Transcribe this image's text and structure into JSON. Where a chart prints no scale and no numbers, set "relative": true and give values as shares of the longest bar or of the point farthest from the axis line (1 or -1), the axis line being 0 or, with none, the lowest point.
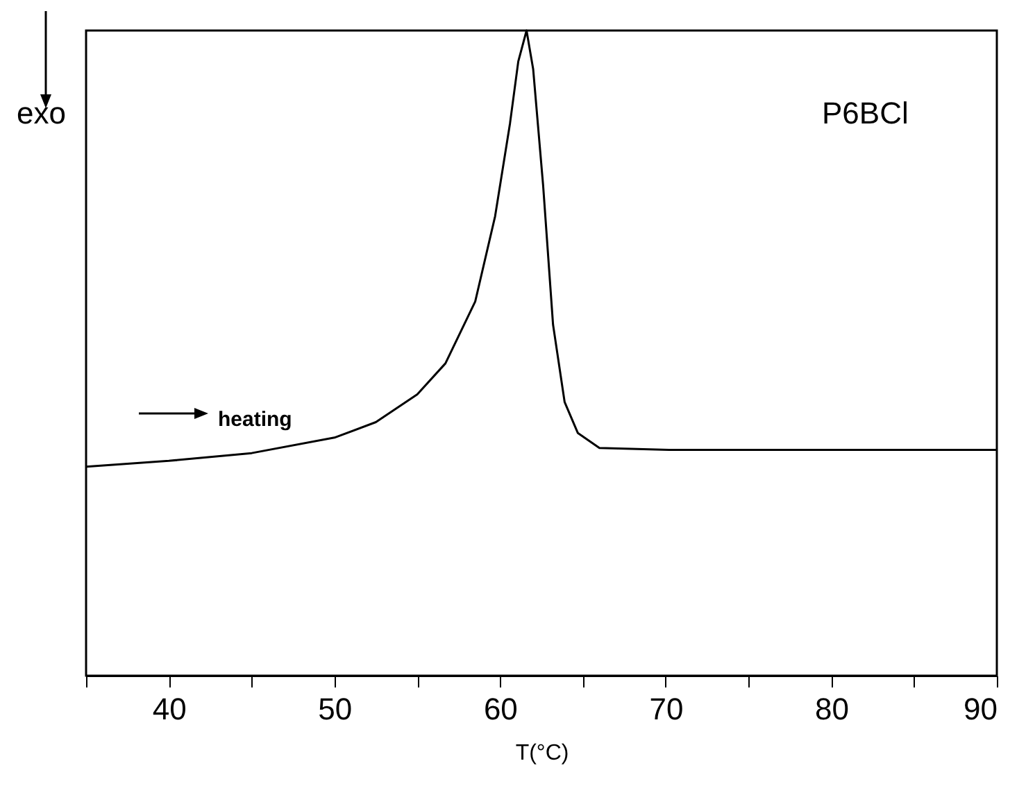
{
  "chart_data": {
    "type": "line",
    "relative": true,
    "xlabel": "T(°C)",
    "xlim": [
      35,
      90
    ],
    "xticks": [
      {
        "value": 35,
        "label": null
      },
      40,
      {
        "value": 45,
        "label": null
      },
      50,
      {
        "value": 55,
        "label": null
      },
      60,
      {
        "value": 65,
        "label": null
      },
      70,
      {
        "value": 75,
        "label": null
      },
      80,
      {
        "value": 85,
        "label": null
      },
      90
    ],
    "annotations": [
      "exo",
      "heating",
      "P6BCl"
    ],
    "marker": "none",
    "line_style": "solid",
    "series": [
      {
        "color": "#000000",
        "x": [
          35,
          40,
          45,
          50,
          52.5,
          55,
          56.7,
          58.5,
          59.7,
          60.6,
          61.1,
          61.6,
          62.0,
          62.6,
          63.2,
          63.9,
          64.7,
          66,
          70.2,
          90
        ],
        "values": [
          0.324,
          0.333,
          0.345,
          0.369,
          0.393,
          0.436,
          0.484,
          0.58,
          0.712,
          0.856,
          0.952,
          1,
          0.94,
          0.76,
          0.544,
          0.424,
          0.376,
          0.353,
          0.35,
          0.35
        ]
      }
    ]
  }
}
